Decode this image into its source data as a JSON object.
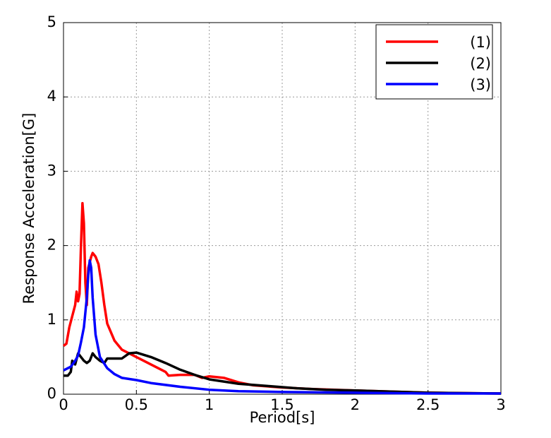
{
  "chart_data": {
    "type": "line",
    "xlabel": "Period[s]",
    "ylabel": "Response Acceleration[G]",
    "xlim": [
      0,
      3
    ],
    "ylim": [
      0,
      5
    ],
    "xticks": [
      0,
      0.5,
      1,
      1.5,
      2,
      2.5,
      3
    ],
    "yticks": [
      0,
      1,
      2,
      3,
      4,
      5
    ],
    "grid": true,
    "legend": "upper right",
    "series": [
      {
        "name": "(1)",
        "color": "#ff0000",
        "x": [
          0,
          0.02,
          0.04,
          0.06,
          0.08,
          0.09,
          0.1,
          0.11,
          0.12,
          0.13,
          0.14,
          0.15,
          0.16,
          0.17,
          0.19,
          0.2,
          0.22,
          0.24,
          0.26,
          0.28,
          0.3,
          0.35,
          0.4,
          0.5,
          0.6,
          0.7,
          0.72,
          0.8,
          0.9,
          0.95,
          1.0,
          1.1,
          1.2,
          1.3,
          1.5,
          1.7,
          2.0,
          2.5,
          3.0
        ],
        "values": [
          0.65,
          0.68,
          0.9,
          1.05,
          1.2,
          1.38,
          1.25,
          1.35,
          2.0,
          2.57,
          2.3,
          1.5,
          1.2,
          1.7,
          1.85,
          1.9,
          1.85,
          1.75,
          1.5,
          1.2,
          0.95,
          0.72,
          0.6,
          0.5,
          0.4,
          0.3,
          0.25,
          0.26,
          0.26,
          0.22,
          0.24,
          0.22,
          0.16,
          0.12,
          0.09,
          0.07,
          0.05,
          0.02,
          0.01
        ]
      },
      {
        "name": "(2)",
        "color": "#000000",
        "x": [
          0,
          0.03,
          0.05,
          0.06,
          0.08,
          0.1,
          0.12,
          0.14,
          0.16,
          0.18,
          0.2,
          0.22,
          0.25,
          0.28,
          0.3,
          0.35,
          0.4,
          0.45,
          0.5,
          0.6,
          0.7,
          0.8,
          0.9,
          1.0,
          1.2,
          1.4,
          1.6,
          1.8,
          2.0,
          2.5,
          3.0
        ],
        "values": [
          0.25,
          0.25,
          0.3,
          0.45,
          0.4,
          0.55,
          0.5,
          0.45,
          0.42,
          0.45,
          0.55,
          0.5,
          0.45,
          0.42,
          0.48,
          0.48,
          0.48,
          0.55,
          0.56,
          0.5,
          0.42,
          0.33,
          0.26,
          0.2,
          0.14,
          0.11,
          0.08,
          0.06,
          0.05,
          0.02,
          0.01
        ]
      },
      {
        "name": "(3)",
        "color": "#0000ff",
        "x": [
          0,
          0.05,
          0.08,
          0.1,
          0.12,
          0.14,
          0.16,
          0.17,
          0.18,
          0.19,
          0.2,
          0.22,
          0.25,
          0.3,
          0.35,
          0.4,
          0.5,
          0.6,
          0.8,
          1.0,
          1.2,
          1.5,
          2.0,
          2.5,
          3.0
        ],
        "values": [
          0.32,
          0.37,
          0.45,
          0.52,
          0.7,
          0.9,
          1.3,
          1.6,
          1.8,
          1.7,
          1.3,
          0.8,
          0.5,
          0.35,
          0.27,
          0.22,
          0.19,
          0.15,
          0.1,
          0.06,
          0.04,
          0.03,
          0.02,
          0.01,
          0.01
        ]
      }
    ]
  }
}
